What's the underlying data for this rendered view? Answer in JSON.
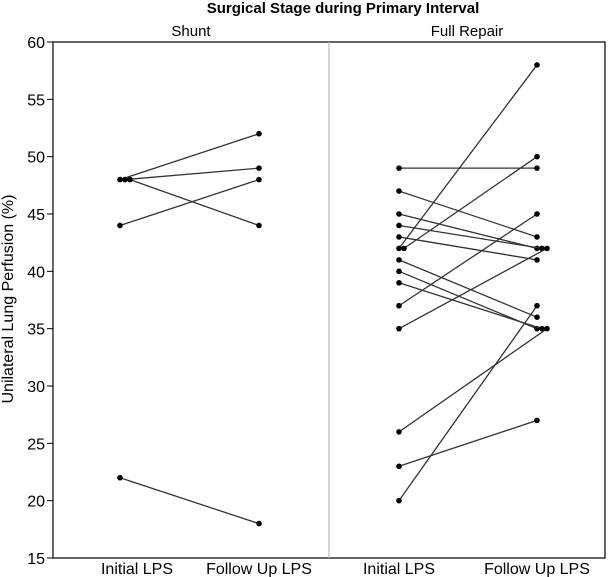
{
  "chart_data": {
    "type": "line",
    "title": "Surgical Stage during Primary Interval",
    "ylabel": "Unilateral Lung Perfusion (%)",
    "ylim": [
      15,
      60
    ],
    "yticks": [
      15,
      20,
      25,
      30,
      35,
      40,
      45,
      50,
      55,
      60
    ],
    "categories": [
      "Initial LPS",
      "Follow Up LPS"
    ],
    "panels": [
      {
        "name": "Shunt",
        "pairs": [
          {
            "initial": 48,
            "follow_up": 52
          },
          {
            "initial": 48,
            "follow_up": 49
          },
          {
            "initial": 48,
            "follow_up": 44
          },
          {
            "initial": 44,
            "follow_up": 48
          },
          {
            "initial": 22,
            "follow_up": 18
          }
        ]
      },
      {
        "name": "Full Repair",
        "pairs": [
          {
            "initial": 49,
            "follow_up": 49
          },
          {
            "initial": 47,
            "follow_up": 43
          },
          {
            "initial": 45,
            "follow_up": 42
          },
          {
            "initial": 44,
            "follow_up": 42
          },
          {
            "initial": 43,
            "follow_up": 41
          },
          {
            "initial": 42,
            "follow_up": 58
          },
          {
            "initial": 42,
            "follow_up": 50
          },
          {
            "initial": 41,
            "follow_up": 36
          },
          {
            "initial": 40,
            "follow_up": 35
          },
          {
            "initial": 39,
            "follow_up": 35
          },
          {
            "initial": 37,
            "follow_up": 45
          },
          {
            "initial": 35,
            "follow_up": 42
          },
          {
            "initial": 26,
            "follow_up": 35
          },
          {
            "initial": 23,
            "follow_up": 27
          },
          {
            "initial": 20,
            "follow_up": 37
          }
        ]
      }
    ]
  }
}
